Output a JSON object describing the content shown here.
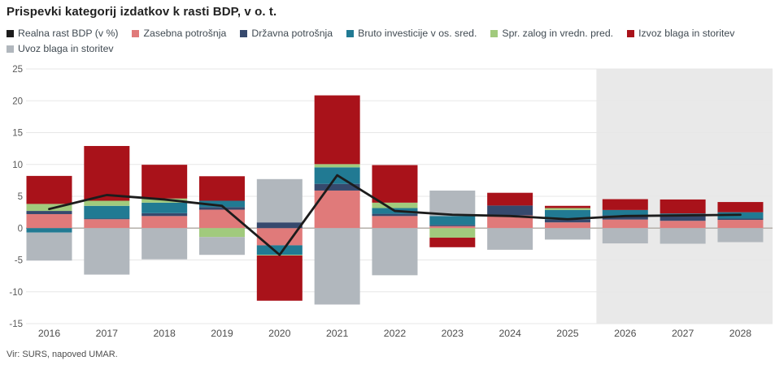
{
  "title": "Prispevki kategorij izdatkov k rasti BDP, v o. t.",
  "source": "Vir: SURS, napoved UMAR.",
  "colors": {
    "line": "#1c1c1c",
    "zasebna": "#e07a7a",
    "drzavna": "#36496d",
    "bruto": "#217a93",
    "zalog": "#a1ca7d",
    "izvoz": "#a9121a",
    "uvoz": "#b1b7bd",
    "forecast_bg": "#e9e9e9",
    "grid": "#e7e7e7",
    "zero_line": "#b5afa9"
  },
  "legend": [
    {
      "label": "Realna rast BDP (v %)",
      "color": "#1c1c1c"
    },
    {
      "label": "Zasebna potrošnja",
      "color": "#e07a7a"
    },
    {
      "label": "Državna potrošnja",
      "color": "#36496d"
    },
    {
      "label": "Bruto investicije v os. sred.",
      "color": "#217a93"
    },
    {
      "label": "Spr. zalog in vredn. pred.",
      "color": "#a1ca7d"
    },
    {
      "label": "Izvoz blaga in storitev",
      "color": "#a9121a"
    },
    {
      "label": "Uvoz blaga in storitev",
      "color": "#b1b7bd"
    }
  ],
  "chart_data": {
    "type": "bar",
    "subtype": "stacked-bars-with-line",
    "title": "Prispevki kategorij izdatkov k rasti BDP, v o. t.",
    "categories": [
      "2016",
      "2017",
      "2018",
      "2019",
      "2020",
      "2021",
      "2022",
      "2023",
      "2024",
      "2025",
      "2026",
      "2027",
      "2028"
    ],
    "series": [
      {
        "name": "Zasebna potrošnja",
        "color": "#e07a7a",
        "values": [
          2.2,
          1.4,
          1.9,
          2.9,
          -2.7,
          5.9,
          1.9,
          0.3,
          2.0,
          0.9,
          1.35,
          1.15,
          1.3
        ]
      },
      {
        "name": "Državna potrošnja",
        "color": "#36496d",
        "values": [
          0.5,
          0.1,
          0.45,
          0.4,
          0.9,
          1.05,
          0.35,
          0.2,
          1.55,
          0.45,
          0.65,
          0.85,
          0.2
        ]
      },
      {
        "name": "Bruto investicije v os. sred.",
        "color": "#217a93",
        "values": [
          -0.7,
          2.0,
          1.65,
          1.0,
          -1.5,
          2.6,
          0.9,
          1.4,
          0.0,
          1.5,
          0.85,
          0.3,
          1.0
        ]
      },
      {
        "name": "Spr. zalog in vredn. pred.",
        "color": "#a1ca7d",
        "values": [
          1.1,
          0.8,
          0.65,
          -1.4,
          -0.1,
          0.5,
          0.85,
          -1.5,
          0.0,
          0.3,
          0.0,
          0.0,
          0.0
        ]
      },
      {
        "name": "Izvoz blaga in storitev",
        "color": "#a9121a",
        "values": [
          4.4,
          8.6,
          5.3,
          3.85,
          -7.1,
          10.8,
          5.9,
          -1.5,
          2.0,
          0.35,
          1.7,
          2.2,
          1.6
        ]
      },
      {
        "name": "Uvoz blaga in storitev",
        "color": "#b1b7bd",
        "values": [
          -4.4,
          -7.3,
          -4.9,
          -2.8,
          6.8,
          -12.0,
          -7.4,
          4.0,
          -3.4,
          -1.8,
          -2.4,
          -2.45,
          -2.2
        ]
      }
    ],
    "line": {
      "name": "Realna rast BDP (v %)",
      "color": "#1c1c1c",
      "values": [
        3.0,
        5.2,
        4.5,
        3.5,
        -4.2,
        8.3,
        2.7,
        2.1,
        1.9,
        1.4,
        1.9,
        2.0,
        2.1
      ]
    },
    "ylim": [
      -15,
      25
    ],
    "yticks": [
      25,
      20,
      15,
      10,
      5,
      0,
      -5,
      -10,
      -15
    ],
    "xlabel": "",
    "ylabel": "",
    "grid": true,
    "legend_position": "top",
    "forecast_region": {
      "from": "2026",
      "to": "2028",
      "color": "#e9e9e9"
    }
  }
}
